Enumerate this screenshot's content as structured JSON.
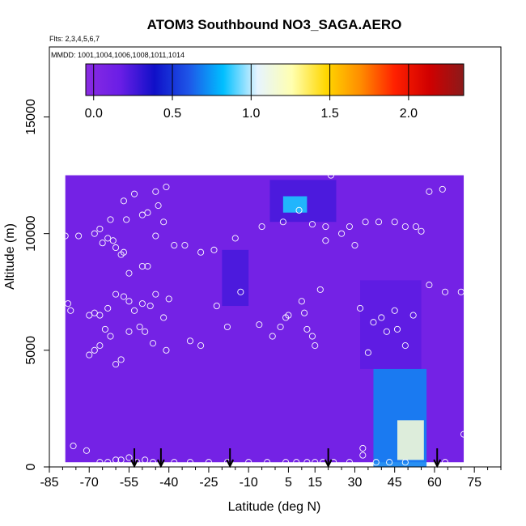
{
  "chart_data": {
    "type": "heatmap",
    "title": "ATOM3 Southbound NO3_SAGA.AERO",
    "subtitle_flights": "Flts: 2,3,4,5,6,7",
    "subtitle_dates": "MMDD: 1001,1004,1006,1008,1011,1014",
    "xlabel": "Latitude (deg N)",
    "ylabel": "Altitude (m)",
    "xlim": [
      -85,
      85
    ],
    "ylim": [
      0,
      18000
    ],
    "x_ticks": [
      -85,
      -70,
      -55,
      -40,
      -25,
      -10,
      5,
      15,
      30,
      45,
      60,
      75
    ],
    "x_minor_step": 5,
    "y_ticks": [
      0,
      5000,
      10000,
      15000
    ],
    "colorbar": {
      "range": [
        -0.05,
        2.35
      ],
      "ticks": [
        "0.0",
        "0.5",
        "1.0",
        "1.5",
        "2.0"
      ],
      "tick_values": [
        0.0,
        0.5,
        1.0,
        1.5,
        2.0
      ],
      "colors": [
        "#8a2be2",
        "#6a1ee6",
        "#1010c8",
        "#1e56e8",
        "#00bfff",
        "#e6f4ff",
        "#ffffb0",
        "#ffd700",
        "#ff8c00",
        "#ff2000",
        "#d00000",
        "#8b1a1a"
      ]
    },
    "field_default_value": 0.1,
    "field_features": [
      {
        "name": "equatorial upper band",
        "lat_range": [
          -2,
          23
        ],
        "alt_range": [
          10500,
          12300
        ],
        "value": 0.25
      },
      {
        "name": "equatorial upper core",
        "lat_range": [
          3,
          12
        ],
        "alt_range": [
          10900,
          11600
        ],
        "value": 0.85
      },
      {
        "name": "mid troposphere plume",
        "lat_range": [
          -20,
          -10
        ],
        "alt_range": [
          6900,
          9300
        ],
        "value": 0.25
      },
      {
        "name": "northern lower plume",
        "lat_range": [
          37,
          57
        ],
        "alt_range": [
          0,
          4200
        ],
        "value": 0.7
      },
      {
        "name": "northern lower core",
        "lat_range": [
          46,
          56
        ],
        "alt_range": [
          300,
          2000
        ],
        "value": 1.15
      },
      {
        "name": "northern vertical band",
        "lat_range": [
          32,
          55
        ],
        "alt_range": [
          4200,
          8000
        ],
        "value": 0.2
      }
    ],
    "field_extent": {
      "lat_range": [
        -79,
        71
      ],
      "alt_range": [
        200,
        12500
      ]
    },
    "observation_points": [
      [
        -78,
        7000
      ],
      [
        -77,
        6700
      ],
      [
        -79,
        9900
      ],
      [
        -74,
        9900
      ],
      [
        -68,
        10000
      ],
      [
        -66,
        10200
      ],
      [
        -65,
        9600
      ],
      [
        -63,
        9800
      ],
      [
        -61,
        9700
      ],
      [
        -60,
        9400
      ],
      [
        -58,
        9100
      ],
      [
        -57,
        9200
      ],
      [
        -55,
        8300
      ],
      [
        -50,
        8600
      ],
      [
        -48,
        8600
      ],
      [
        -45,
        9900
      ],
      [
        -42,
        10500
      ],
      [
        -38,
        9500
      ],
      [
        -34,
        9500
      ],
      [
        -28,
        9200
      ],
      [
        -23,
        9300
      ],
      [
        -15,
        9800
      ],
      [
        -70,
        6500
      ],
      [
        -68,
        6600
      ],
      [
        -66,
        6500
      ],
      [
        -63,
        6800
      ],
      [
        -60,
        7400
      ],
      [
        -57,
        7300
      ],
      [
        -55,
        7100
      ],
      [
        -53,
        6700
      ],
      [
        -50,
        7000
      ],
      [
        -47,
        6900
      ],
      [
        -45,
        7400
      ],
      [
        -42,
        6400
      ],
      [
        -40,
        7200
      ],
      [
        -70,
        4800
      ],
      [
        -68,
        5000
      ],
      [
        -66,
        5200
      ],
      [
        -64,
        5900
      ],
      [
        -62,
        5600
      ],
      [
        -60,
        4400
      ],
      [
        -58,
        4600
      ],
      [
        -55,
        5800
      ],
      [
        -51,
        6000
      ],
      [
        -49,
        5800
      ],
      [
        -46,
        5300
      ],
      [
        -41,
        5000
      ],
      [
        -32,
        5400
      ],
      [
        -28,
        5200
      ],
      [
        -22,
        6900
      ],
      [
        -18,
        6000
      ],
      [
        -13,
        7500
      ],
      [
        -6,
        6100
      ],
      [
        -1,
        5600
      ],
      [
        2,
        6000
      ],
      [
        4,
        6400
      ],
      [
        5,
        6500
      ],
      [
        10,
        7100
      ],
      [
        11,
        6600
      ],
      [
        12,
        5900
      ],
      [
        14,
        5600
      ],
      [
        15,
        5200
      ],
      [
        17,
        7600
      ],
      [
        19,
        9700
      ],
      [
        25,
        10000
      ],
      [
        28,
        10300
      ],
      [
        30,
        9500
      ],
      [
        32,
        6800
      ],
      [
        35,
        4900
      ],
      [
        37,
        6200
      ],
      [
        40,
        6400
      ],
      [
        42,
        5800
      ],
      [
        45,
        6700
      ],
      [
        46,
        5900
      ],
      [
        49,
        5200
      ],
      [
        52,
        6500
      ],
      [
        58,
        7800
      ],
      [
        64,
        7500
      ],
      [
        34,
        10500
      ],
      [
        39,
        10500
      ],
      [
        45,
        10500
      ],
      [
        49,
        10300
      ],
      [
        53,
        10300
      ],
      [
        55,
        10100
      ],
      [
        58,
        11800
      ],
      [
        63,
        11900
      ],
      [
        21,
        12500
      ],
      [
        -5,
        10300
      ],
      [
        3,
        10500
      ],
      [
        9,
        11000
      ],
      [
        19,
        10300
      ],
      [
        14,
        10400
      ],
      [
        -48,
        10900
      ],
      [
        -45,
        11800
      ],
      [
        -41,
        12000
      ],
      [
        -44,
        11200
      ],
      [
        -50,
        10800
      ],
      [
        -56,
        10600
      ],
      [
        -57,
        11400
      ],
      [
        -53,
        11700
      ],
      [
        -62,
        10600
      ],
      [
        -76,
        900
      ],
      [
        -71,
        700
      ],
      [
        -66,
        200
      ],
      [
        -63,
        200
      ],
      [
        -60,
        300
      ],
      [
        -58,
        300
      ],
      [
        -55,
        400
      ],
      [
        -52,
        200
      ],
      [
        -49,
        300
      ],
      [
        -46,
        200
      ],
      [
        -38,
        200
      ],
      [
        -32,
        200
      ],
      [
        -25,
        200
      ],
      [
        -18,
        200
      ],
      [
        -10,
        200
      ],
      [
        -3,
        200
      ],
      [
        4,
        200
      ],
      [
        8,
        200
      ],
      [
        12,
        200
      ],
      [
        15,
        200
      ],
      [
        18,
        200
      ],
      [
        22,
        200
      ],
      [
        28,
        200
      ],
      [
        33,
        800
      ],
      [
        33,
        500
      ],
      [
        38,
        200
      ],
      [
        43,
        200
      ],
      [
        49,
        200
      ],
      [
        64,
        200
      ],
      [
        71,
        1400
      ],
      [
        70,
        7500
      ]
    ],
    "flight_arrows": [
      -53,
      -43,
      -17,
      20,
      61
    ]
  }
}
